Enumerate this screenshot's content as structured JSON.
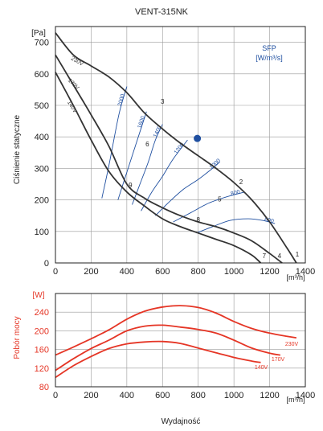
{
  "chart_data": [
    {
      "type": "line",
      "title": "VENT-315NK",
      "ylabel": "Ciśnienie statyczne",
      "yunit": "[Pa]",
      "xunit": "[m³/h]",
      "xlim": [
        0,
        1400
      ],
      "ylim": [
        0,
        750
      ],
      "xticks": [
        "0",
        "200",
        "400",
        "600",
        "800",
        "1000",
        "1200",
        "1400"
      ],
      "yticks": [
        "0",
        "100",
        "200",
        "300",
        "400",
        "500",
        "600",
        "700"
      ],
      "grid": true,
      "series": [
        {
          "name": "230V",
          "color": "#333333",
          "x": [
            0,
            100,
            200,
            300,
            400,
            500,
            600,
            700,
            800,
            900,
            1000,
            1100,
            1200,
            1300,
            1350
          ],
          "y": [
            730,
            660,
            625,
            590,
            540,
            475,
            425,
            380,
            340,
            300,
            255,
            200,
            130,
            45,
            0
          ]
        },
        {
          "name": "170V",
          "color": "#333333",
          "x": [
            0,
            100,
            200,
            300,
            400,
            500,
            600,
            700,
            800,
            900,
            1000,
            1100,
            1200,
            1270
          ],
          "y": [
            660,
            565,
            470,
            370,
            250,
            205,
            175,
            150,
            130,
            115,
            95,
            70,
            30,
            0
          ]
        },
        {
          "name": "140V",
          "color": "#333333",
          "x": [
            0,
            100,
            200,
            300,
            400,
            500,
            600,
            700,
            800,
            900,
            1000,
            1100,
            1150
          ],
          "y": [
            605,
            500,
            390,
            290,
            225,
            180,
            140,
            115,
            95,
            75,
            55,
            25,
            0
          ]
        }
      ],
      "sfp_curves": [
        {
          "label": "2000",
          "color": "#1f4fa0",
          "x": [
            260,
            300,
            355,
            400
          ],
          "y": [
            205,
            310,
            470,
            560
          ]
        },
        {
          "label": "1600",
          "color": "#1f4fa0",
          "x": [
            350,
            390,
            430,
            470,
            510
          ],
          "y": [
            200,
            270,
            340,
            410,
            480
          ]
        },
        {
          "label": "1400",
          "color": "#1f4fa0",
          "x": [
            430,
            470,
            520,
            560,
            600
          ],
          "y": [
            185,
            245,
            320,
            390,
            440
          ]
        },
        {
          "label": "1200",
          "color": "#1f4fa0",
          "x": [
            480,
            540,
            600,
            660,
            740
          ],
          "y": [
            165,
            225,
            275,
            330,
            390
          ]
        },
        {
          "label": "1000",
          "color": "#1f4fa0",
          "x": [
            560,
            640,
            720,
            800,
            880,
            920
          ],
          "y": [
            150,
            195,
            235,
            265,
            300,
            320
          ]
        },
        {
          "label": "800",
          "color": "#1f4fa0",
          "x": [
            660,
            760,
            860,
            960,
            1060
          ],
          "y": [
            130,
            160,
            190,
            210,
            225
          ]
        },
        {
          "label": "600",
          "color": "#1f4fa0",
          "x": [
            790,
            880,
            980,
            1080,
            1160,
            1230
          ],
          "y": [
            95,
            115,
            135,
            140,
            135,
            125
          ]
        }
      ],
      "sfp_title": "SFP",
      "sfp_unit": "[W/m³/s]",
      "point_labels": [
        {
          "label": "1",
          "x": 1355,
          "y": 20
        },
        {
          "label": "2",
          "x": 1040,
          "y": 250
        },
        {
          "label": "3",
          "x": 600,
          "y": 505
        },
        {
          "label": "4",
          "x": 1255,
          "y": 15
        },
        {
          "label": "5",
          "x": 920,
          "y": 195
        },
        {
          "label": "6",
          "x": 515,
          "y": 370
        },
        {
          "label": "7",
          "x": 1170,
          "y": 15
        },
        {
          "label": "8",
          "x": 800,
          "y": 130
        },
        {
          "label": "9",
          "x": 420,
          "y": 240
        }
      ],
      "marker": {
        "x": 795,
        "y": 395,
        "color": "#1f4fa0"
      }
    },
    {
      "type": "line",
      "ylabel": "Pobór mocy",
      "xlabel": "Wydajność",
      "yunit": "[W]",
      "xunit": "[m³/h]",
      "xlim": [
        0,
        1400
      ],
      "ylim": [
        80,
        280
      ],
      "xticks": [
        "0",
        "200",
        "400",
        "600",
        "800",
        "1000",
        "1200",
        "1400"
      ],
      "yticks": [
        "80",
        "120",
        "160",
        "200",
        "240"
      ],
      "grid": true,
      "series": [
        {
          "name": "230V",
          "color": "#e53525",
          "x": [
            0,
            100,
            200,
            300,
            400,
            500,
            600,
            700,
            800,
            900,
            1000,
            1100,
            1200,
            1300,
            1350
          ],
          "y": [
            148,
            165,
            183,
            202,
            225,
            242,
            251,
            254,
            250,
            238,
            220,
            205,
            195,
            188,
            185
          ]
        },
        {
          "name": "170V",
          "color": "#e53525",
          "x": [
            0,
            100,
            200,
            300,
            400,
            500,
            600,
            700,
            800,
            900,
            1000,
            1100,
            1200,
            1260
          ],
          "y": [
            115,
            140,
            162,
            180,
            200,
            210,
            212,
            208,
            203,
            195,
            180,
            163,
            152,
            148
          ]
        },
        {
          "name": "140V",
          "color": "#e53525",
          "x": [
            0,
            100,
            200,
            300,
            400,
            500,
            600,
            700,
            800,
            900,
            1000,
            1100,
            1150
          ],
          "y": [
            100,
            125,
            145,
            162,
            172,
            176,
            177,
            173,
            163,
            153,
            143,
            135,
            132
          ]
        }
      ]
    }
  ]
}
